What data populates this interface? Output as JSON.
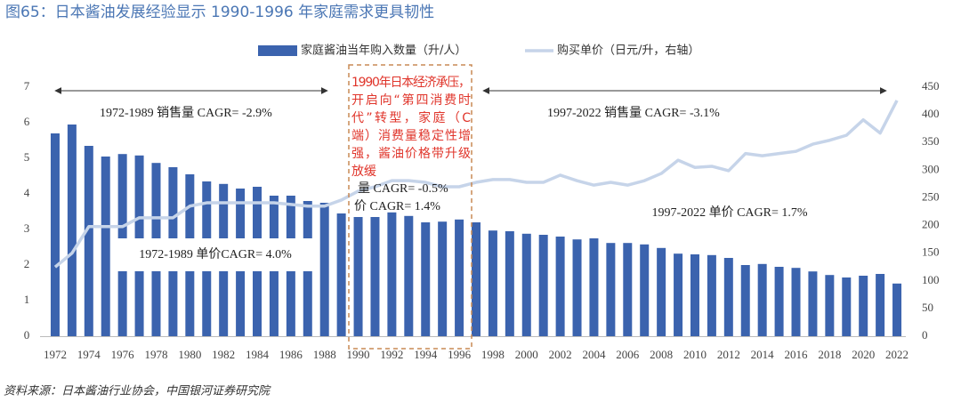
{
  "chart_data": {
    "type": "bar-line",
    "title": "图65：日本酱油发展经验显示 1990-1996 年家庭需求更具韧性",
    "source": "资料来源：日本酱油行业协会，中国银河证券研究院",
    "categories": [
      "1972",
      null,
      "1974",
      null,
      "1976",
      null,
      "1978",
      null,
      "1980",
      null,
      "1982",
      null,
      "1984",
      null,
      "1986",
      null,
      "1988",
      null,
      "1990",
      null,
      "1992",
      null,
      "1994",
      null,
      "1996",
      null,
      "1998",
      null,
      "2000",
      null,
      "2002",
      null,
      "2004",
      null,
      "2006",
      null,
      "2008",
      null,
      "2010",
      null,
      "2012",
      null,
      "2014",
      null,
      "2016",
      null,
      "2018",
      null,
      "2020",
      null,
      "2022"
    ],
    "series": [
      {
        "name": "家庭酱油当年购入数量（升/人）",
        "color": "#3b63ae",
        "type": "bar",
        "values": [
          5.7,
          5.95,
          5.35,
          5.05,
          5.12,
          5.08,
          4.87,
          4.75,
          4.55,
          4.35,
          4.28,
          4.15,
          4.2,
          3.95,
          3.95,
          3.8,
          3.75,
          3.45,
          3.35,
          3.35,
          3.48,
          3.38,
          3.2,
          3.22,
          3.28,
          3.2,
          2.97,
          2.95,
          2.88,
          2.85,
          2.8,
          2.72,
          2.75,
          2.62,
          2.62,
          2.58,
          2.48,
          2.32,
          2.3,
          2.28,
          2.2,
          2.0,
          2.03,
          1.95,
          1.92,
          1.82,
          1.72,
          1.65,
          1.7,
          1.75,
          1.48
        ]
      },
      {
        "name": "购买单价（日元/升，右轴）",
        "color": "#c6d4e9",
        "type": "line",
        "axis": "y2",
        "values": [
          125,
          150,
          198,
          198,
          198,
          214,
          214,
          214,
          235,
          241,
          241,
          241,
          241,
          241,
          238,
          235,
          235,
          246,
          262,
          270,
          281,
          281,
          278,
          270,
          270,
          278,
          283,
          283,
          278,
          278,
          291,
          281,
          273,
          278,
          273,
          281,
          294,
          318,
          305,
          307,
          299,
          330,
          326,
          330,
          334,
          347,
          354,
          363,
          391,
          367,
          426
        ]
      }
    ],
    "ylim": [
      0,
      7
    ],
    "yticks": [
      0,
      1,
      2,
      3,
      4,
      5,
      6,
      7
    ],
    "y2lim": [
      0,
      450
    ],
    "y2ticks": [
      0,
      50,
      100,
      150,
      200,
      250,
      300,
      350,
      400,
      450
    ],
    "annotations": [
      "1972-1989 销售量 CAGR= -2.9%",
      "1997-2022 销售量 CAGR= -3.1%",
      "1972-1989 单价CAGR= 4.0%",
      "1997-2022 单价 CAGR= 1.7%",
      "量 CAGR= -0.5%",
      "价 CAGR= 1.4%"
    ],
    "highlight_text": [
      "1990年日本经济承压，",
      "开启向“第四消费时",
      "代”转型，家庭（C",
      "端）消费量稳定性增",
      "强，酱油价格带升级",
      "放缓"
    ]
  }
}
